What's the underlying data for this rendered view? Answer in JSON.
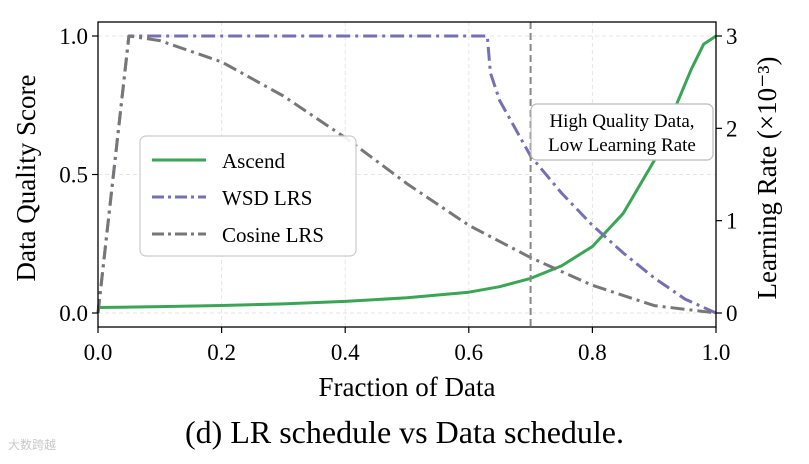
{
  "chart_data": {
    "type": "line",
    "title": "",
    "xlabel": "Fraction of Data",
    "ylabel_left": "Data Quality Score",
    "ylabel_right": "Learning Rate (×10⁻³)",
    "xlim": [
      0,
      1
    ],
    "ylim_left": [
      0,
      1
    ],
    "ylim_right": [
      0,
      3
    ],
    "xticks": [
      "0.0",
      "0.2",
      "0.4",
      "0.6",
      "0.8",
      "1.0"
    ],
    "yticks_left": [
      "0.0",
      "0.5",
      "1.0"
    ],
    "yticks_right": [
      "0",
      "1",
      "2",
      "3"
    ],
    "grid": true,
    "legend_position": "center-left",
    "series": [
      {
        "name": "Ascend",
        "axis": "left",
        "color": "#3aa655",
        "style": "solid",
        "x": [
          0.0,
          0.1,
          0.2,
          0.3,
          0.4,
          0.5,
          0.6,
          0.65,
          0.7,
          0.75,
          0.8,
          0.85,
          0.9,
          0.93,
          0.96,
          0.98,
          1.0
        ],
        "values": [
          0.02,
          0.023,
          0.027,
          0.033,
          0.042,
          0.055,
          0.075,
          0.095,
          0.125,
          0.17,
          0.24,
          0.36,
          0.55,
          0.72,
          0.88,
          0.97,
          1.0
        ]
      },
      {
        "name": "WSD LRS",
        "axis": "right",
        "color": "#7570b3",
        "style": "dashdot",
        "x": [
          0.0,
          0.05,
          0.63,
          0.635,
          0.65,
          0.7,
          0.75,
          0.8,
          0.85,
          0.9,
          0.95,
          1.0
        ],
        "values": [
          0.0,
          3.0,
          3.0,
          2.6,
          2.3,
          1.7,
          1.3,
          0.95,
          0.65,
          0.38,
          0.15,
          0.0
        ]
      },
      {
        "name": "Cosine LRS",
        "axis": "right",
        "color": "#777777",
        "style": "dashdot",
        "x": [
          0.0,
          0.05,
          0.1,
          0.2,
          0.3,
          0.4,
          0.5,
          0.6,
          0.7,
          0.8,
          0.9,
          1.0
        ],
        "values": [
          0.0,
          3.0,
          2.95,
          2.72,
          2.35,
          1.9,
          1.4,
          0.95,
          0.6,
          0.3,
          0.08,
          0.0
        ]
      }
    ],
    "vline": {
      "x": 0.7,
      "color": "#888888",
      "style": "dashed"
    },
    "annotation": {
      "lines": [
        "High Quality Data,",
        "Low Learning Rate"
      ]
    }
  },
  "caption": "(d) LR schedule vs Data schedule.",
  "watermark": "大数跨越"
}
